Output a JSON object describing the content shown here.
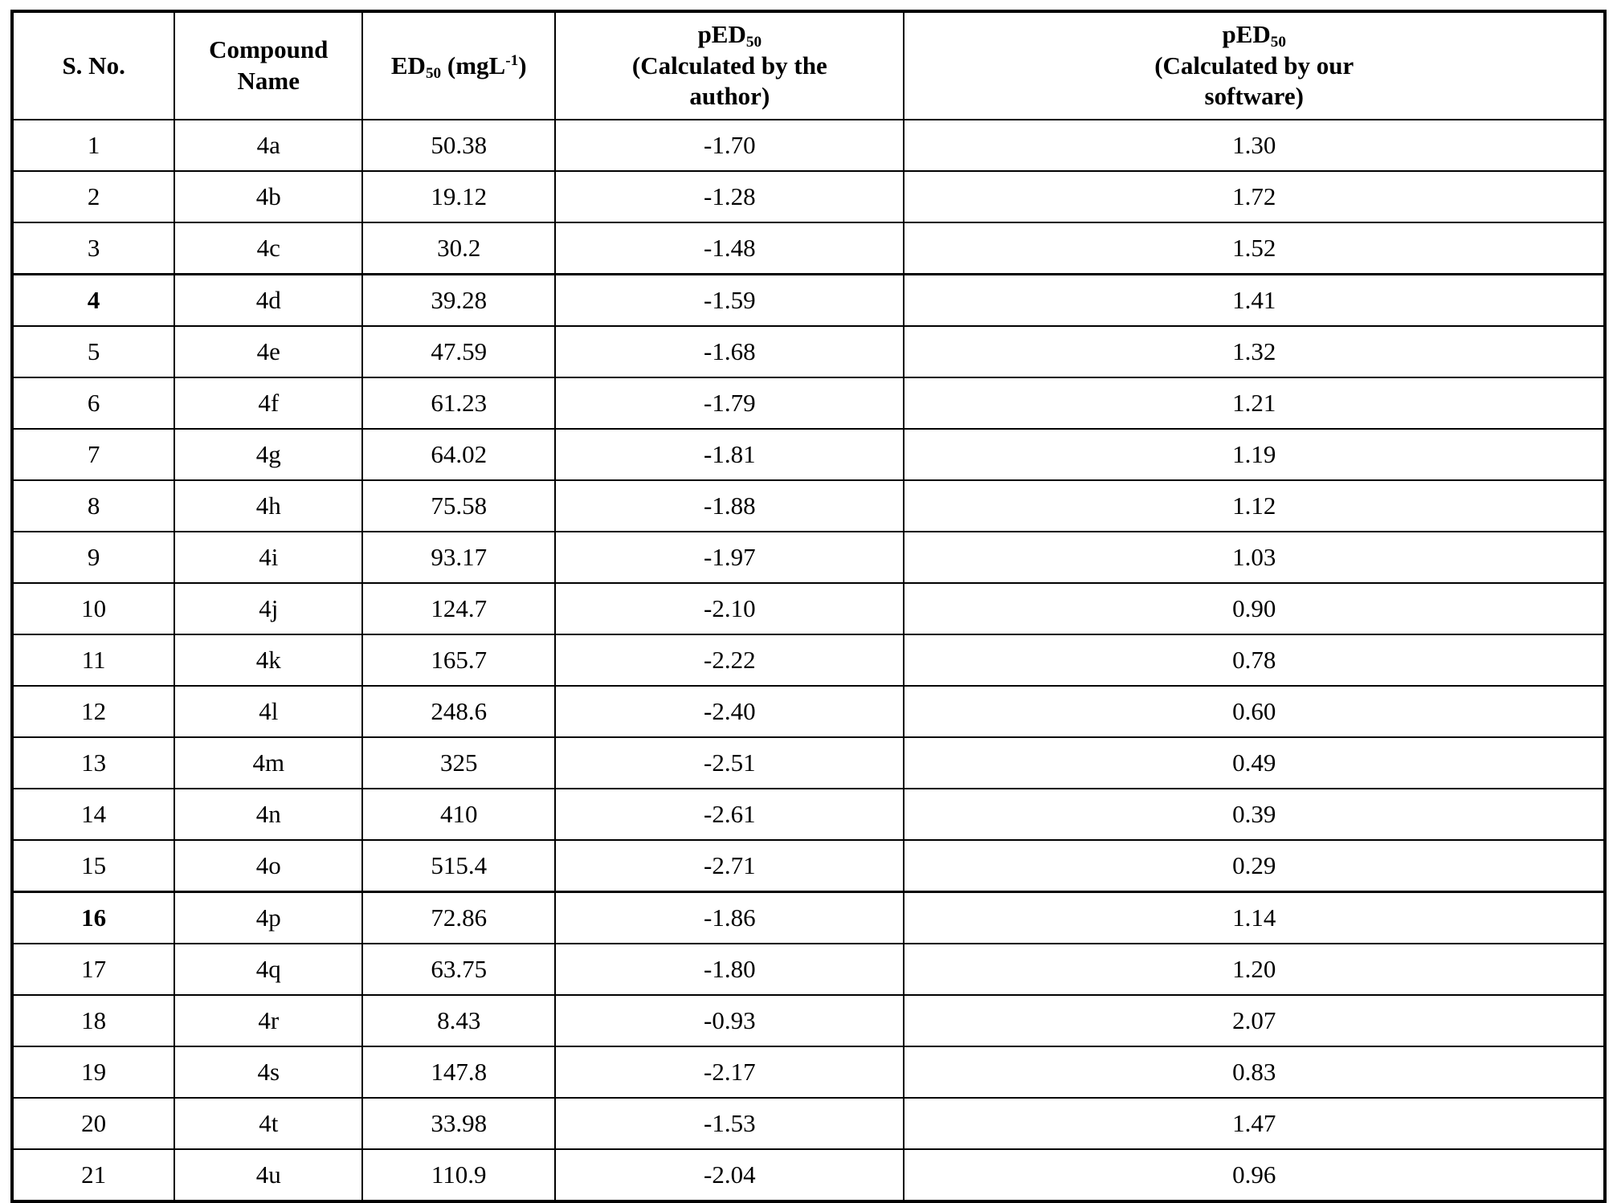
{
  "table": {
    "headers": {
      "sno": "S. No.",
      "compound": "Compound Name",
      "ed50": {
        "base": "ED",
        "sub": "50",
        "mid": " (mgL",
        "sup": "-1",
        "end": ")"
      },
      "ped_author": {
        "base": "pED",
        "sub": "50",
        "line2": "(Calculated by the",
        "line3": "author)"
      },
      "ped_software": {
        "base": "pED",
        "sub": "50",
        "line2": "(Calculated by our",
        "line3": "software)"
      }
    },
    "rows": [
      {
        "sno": "1",
        "compound": "4a",
        "ed50": "50.38",
        "ped50_author": "-1.70",
        "ped50_software": "1.30",
        "bold_sno": false,
        "thick_top": false
      },
      {
        "sno": "2",
        "compound": "4b",
        "ed50": "19.12",
        "ped50_author": "-1.28",
        "ped50_software": "1.72",
        "bold_sno": false,
        "thick_top": false
      },
      {
        "sno": "3",
        "compound": "4c",
        "ed50": "30.2",
        "ped50_author": "-1.48",
        "ped50_software": "1.52",
        "bold_sno": false,
        "thick_top": false
      },
      {
        "sno": "4",
        "compound": "4d",
        "ed50": "39.28",
        "ped50_author": "-1.59",
        "ped50_software": "1.41",
        "bold_sno": true,
        "thick_top": true
      },
      {
        "sno": "5",
        "compound": "4e",
        "ed50": "47.59",
        "ped50_author": "-1.68",
        "ped50_software": "1.32",
        "bold_sno": false,
        "thick_top": false
      },
      {
        "sno": "6",
        "compound": "4f",
        "ed50": "61.23",
        "ped50_author": "-1.79",
        "ped50_software": "1.21",
        "bold_sno": false,
        "thick_top": false
      },
      {
        "sno": "7",
        "compound": "4g",
        "ed50": "64.02",
        "ped50_author": "-1.81",
        "ped50_software": "1.19",
        "bold_sno": false,
        "thick_top": false
      },
      {
        "sno": "8",
        "compound": "4h",
        "ed50": "75.58",
        "ped50_author": "-1.88",
        "ped50_software": "1.12",
        "bold_sno": false,
        "thick_top": false
      },
      {
        "sno": "9",
        "compound": "4i",
        "ed50": "93.17",
        "ped50_author": "-1.97",
        "ped50_software": "1.03",
        "bold_sno": false,
        "thick_top": false
      },
      {
        "sno": "10",
        "compound": "4j",
        "ed50": "124.7",
        "ped50_author": "-2.10",
        "ped50_software": "0.90",
        "bold_sno": false,
        "thick_top": false
      },
      {
        "sno": "11",
        "compound": "4k",
        "ed50": "165.7",
        "ped50_author": "-2.22",
        "ped50_software": "0.78",
        "bold_sno": false,
        "thick_top": false
      },
      {
        "sno": "12",
        "compound": "4l",
        "ed50": "248.6",
        "ped50_author": "-2.40",
        "ped50_software": "0.60",
        "bold_sno": false,
        "thick_top": false
      },
      {
        "sno": "13",
        "compound": "4m",
        "ed50": "325",
        "ped50_author": "-2.51",
        "ped50_software": "0.49",
        "bold_sno": false,
        "thick_top": false
      },
      {
        "sno": "14",
        "compound": "4n",
        "ed50": "410",
        "ped50_author": "-2.61",
        "ped50_software": "0.39",
        "bold_sno": false,
        "thick_top": false
      },
      {
        "sno": "15",
        "compound": "4o",
        "ed50": "515.4",
        "ped50_author": "-2.71",
        "ped50_software": "0.29",
        "bold_sno": false,
        "thick_top": false
      },
      {
        "sno": "16",
        "compound": "4p",
        "ed50": "72.86",
        "ped50_author": "-1.86",
        "ped50_software": "1.14",
        "bold_sno": true,
        "thick_top": true
      },
      {
        "sno": "17",
        "compound": "4q",
        "ed50": "63.75",
        "ped50_author": "-1.80",
        "ped50_software": "1.20",
        "bold_sno": false,
        "thick_top": false
      },
      {
        "sno": "18",
        "compound": "4r",
        "ed50": "8.43",
        "ped50_author": "-0.93",
        "ped50_software": "2.07",
        "bold_sno": false,
        "thick_top": false
      },
      {
        "sno": "19",
        "compound": "4s",
        "ed50": "147.8",
        "ped50_author": "-2.17",
        "ped50_software": "0.83",
        "bold_sno": false,
        "thick_top": false
      },
      {
        "sno": "20",
        "compound": "4t",
        "ed50": "33.98",
        "ped50_author": "-1.53",
        "ped50_software": "1.47",
        "bold_sno": false,
        "thick_top": false
      },
      {
        "sno": "21",
        "compound": "4u",
        "ed50": "110.9",
        "ped50_author": "-2.04",
        "ped50_software": "0.96",
        "bold_sno": false,
        "thick_top": false
      }
    ]
  }
}
